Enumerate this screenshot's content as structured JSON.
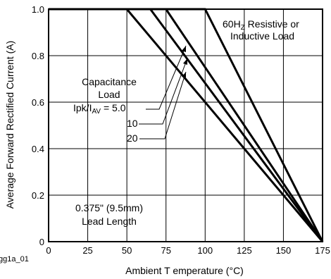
{
  "chart_data": {
    "type": "line",
    "xlabel": "Ambient T emperature (°C)",
    "ylabel": "Average Forward Rectified Current (A)",
    "xlim": [
      0,
      175
    ],
    "ylim": [
      0,
      1.0
    ],
    "x_ticks": [
      0,
      25,
      50,
      75,
      100,
      125,
      150,
      175
    ],
    "x_tick_labels": [
      "0",
      "25",
      "50",
      "75",
      "100",
      "125",
      "150",
      "175"
    ],
    "y_ticks": [
      0,
      0.2,
      0.4,
      0.6,
      0.8,
      1.0
    ],
    "y_tick_labels": [
      "0",
      "0.2",
      "0.4",
      "0.6",
      "0.8",
      "1.0"
    ],
    "grid": true,
    "series": [
      {
        "name": "60Hz Resistive or Inductive Load",
        "x": [
          0,
          100,
          175
        ],
        "y": [
          1.0,
          1.0,
          0
        ]
      },
      {
        "name": "Ipk/IAV = 5.0",
        "x": [
          0,
          75,
          175
        ],
        "y": [
          1.0,
          1.0,
          0
        ]
      },
      {
        "name": "10",
        "x": [
          0,
          65,
          175
        ],
        "y": [
          1.0,
          1.0,
          0
        ]
      },
      {
        "name": "20",
        "x": [
          0,
          50,
          175
        ],
        "y": [
          1.0,
          1.0,
          0
        ]
      }
    ],
    "annotations": {
      "load_top": {
        "line1_a": "60H",
        "line1_sub": "Z",
        "line1_b": " Resistive or",
        "line2": "Inductive Load"
      },
      "capacitance": {
        "line1": "Capacitance",
        "line2": "Load",
        "ratio_a": "Ipk/I",
        "ratio_sub": "AV",
        "ratio_b": " = 5.0",
        "label_10": "10",
        "label_20": "20"
      },
      "lead": {
        "line1": "0.375\" (9.5mm)",
        "line2": "Lead Length"
      },
      "figure_id": "gg1a_01"
    }
  }
}
